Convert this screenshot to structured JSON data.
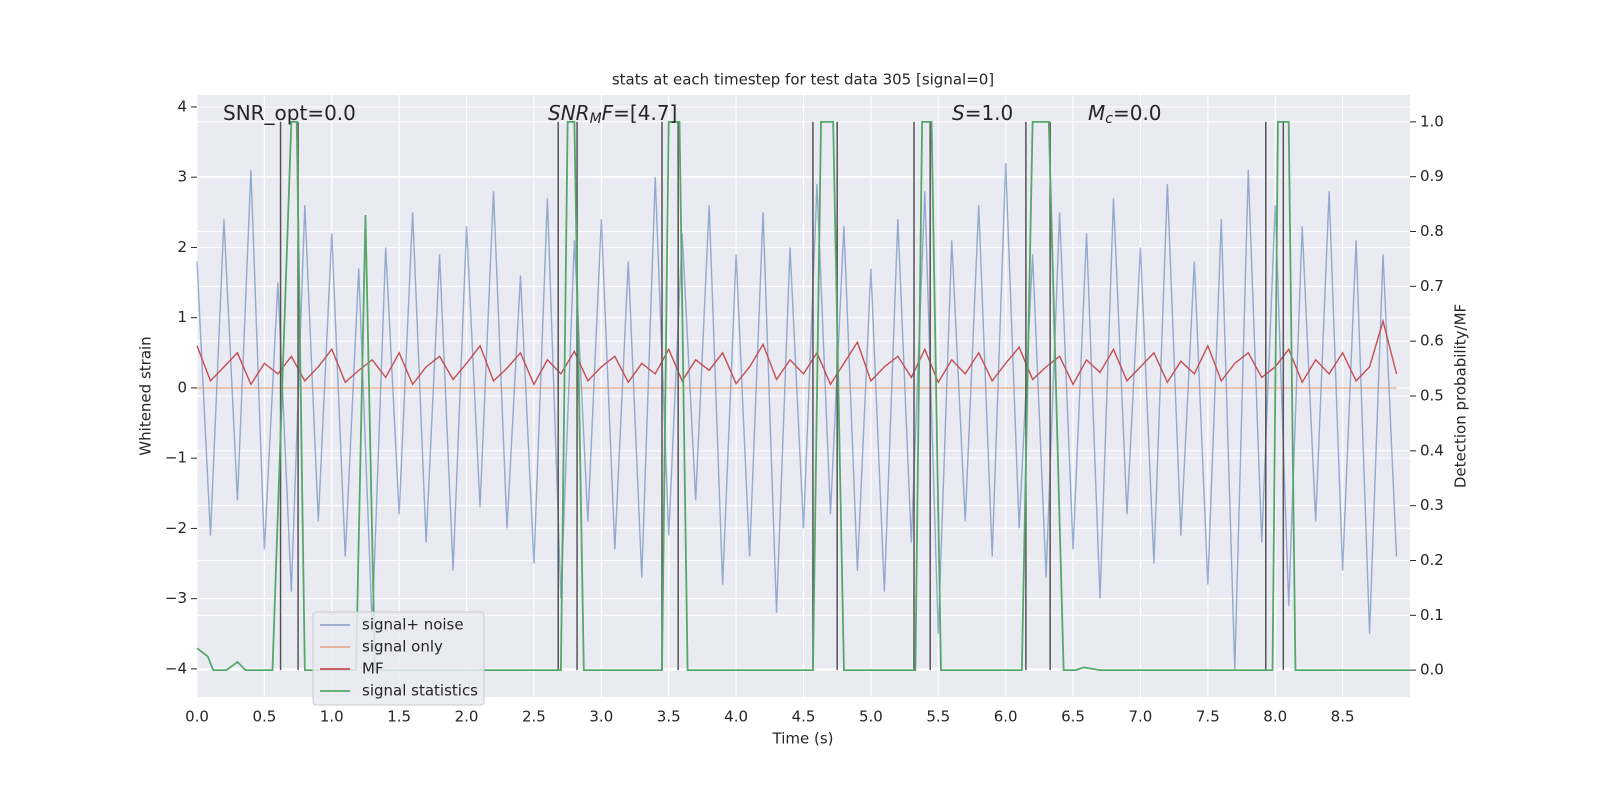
{
  "chart_data": {
    "type": "line",
    "title": "stats at each timestep for test data 305 [signal=0]",
    "xlabel": "Time (s)",
    "ylabel": "Whitened strain",
    "y2label": "Detection probability/MF",
    "x": [
      0.0,
      0.1,
      0.2,
      0.3,
      0.4,
      0.5,
      0.6,
      0.7,
      0.8,
      0.9,
      1.0,
      1.1,
      1.2,
      1.3,
      1.4,
      1.5,
      1.6,
      1.7,
      1.8,
      1.9,
      2.0,
      2.1,
      2.2,
      2.3,
      2.4,
      2.5,
      2.6,
      2.7,
      2.8,
      2.9,
      3.0,
      3.1,
      3.2,
      3.3,
      3.4,
      3.5,
      3.6,
      3.7,
      3.8,
      3.9,
      4.0,
      4.1,
      4.2,
      4.3,
      4.4,
      4.5,
      4.6,
      4.7,
      4.8,
      4.9,
      5.0,
      5.1,
      5.2,
      5.3,
      5.4,
      5.5,
      5.6,
      5.7,
      5.8,
      5.9,
      6.0,
      6.1,
      6.2,
      6.3,
      6.4,
      6.5,
      6.6,
      6.7,
      6.8,
      6.9,
      7.0,
      7.1,
      7.2,
      7.3,
      7.4,
      7.5,
      7.6,
      7.7,
      7.8,
      7.9,
      8.0,
      8.1,
      8.2,
      8.3,
      8.4,
      8.5,
      8.6,
      8.7,
      8.8,
      8.9
    ],
    "series": [
      {
        "name": "signal+ noise",
        "color": "#4c72b0",
        "opacity": 0.55,
        "values": [
          1.8,
          -2.1,
          2.4,
          -1.6,
          3.1,
          -2.3,
          1.5,
          -2.9,
          2.6,
          -1.9,
          2.2,
          -2.4,
          1.7,
          -3.4,
          2.0,
          -1.8,
          2.5,
          -2.2,
          1.9,
          -2.6,
          2.3,
          -1.7,
          2.8,
          -2.0,
          1.6,
          -2.5,
          2.7,
          -3.0,
          2.1,
          -1.9,
          2.4,
          -2.3,
          1.8,
          -2.7,
          3.0,
          -2.1,
          2.2,
          -1.6,
          2.6,
          -2.8,
          1.9,
          -2.4,
          2.5,
          -3.2,
          2.0,
          -2.0,
          2.9,
          -1.8,
          2.3,
          -2.6,
          1.7,
          -2.9,
          2.4,
          -2.2,
          2.8,
          -3.5,
          2.1,
          -1.9,
          2.6,
          -2.4,
          3.2,
          -2.0,
          1.9,
          -2.7,
          2.5,
          -2.3,
          2.2,
          -3.0,
          2.7,
          -1.8,
          2.0,
          -2.5,
          2.9,
          -2.1,
          1.8,
          -2.8,
          2.4,
          -4.0,
          3.1,
          -2.2,
          2.6,
          -3.1,
          2.3,
          -1.9,
          2.8,
          -2.6,
          2.1,
          -3.5,
          1.9,
          -2.4
        ]
      },
      {
        "name": "signal only",
        "color": "#dd8452",
        "opacity": 0.6,
        "values": [
          0,
          0,
          0,
          0,
          0,
          0,
          0,
          0,
          0,
          0,
          0,
          0,
          0,
          0,
          0,
          0,
          0,
          0,
          0,
          0,
          0,
          0,
          0,
          0,
          0,
          0,
          0,
          0,
          0,
          0,
          0,
          0,
          0,
          0,
          0,
          0,
          0,
          0,
          0,
          0,
          0,
          0,
          0,
          0,
          0,
          0,
          0,
          0,
          0,
          0,
          0,
          0,
          0,
          0,
          0,
          0,
          0,
          0,
          0,
          0,
          0,
          0,
          0,
          0,
          0,
          0,
          0,
          0,
          0,
          0,
          0,
          0,
          0,
          0,
          0,
          0,
          0,
          0,
          0,
          0,
          0,
          0,
          0,
          0,
          0,
          0,
          0,
          0,
          0,
          0
        ]
      },
      {
        "name": "MF",
        "color": "#c44e52",
        "opacity": 1,
        "values": [
          0.6,
          0.1,
          0.3,
          0.5,
          0.05,
          0.35,
          0.2,
          0.45,
          0.1,
          0.3,
          0.55,
          0.08,
          0.25,
          0.4,
          0.15,
          0.5,
          0.05,
          0.3,
          0.45,
          0.12,
          0.35,
          0.6,
          0.1,
          0.28,
          0.5,
          0.05,
          0.4,
          0.2,
          0.52,
          0.1,
          0.3,
          0.45,
          0.08,
          0.35,
          0.2,
          0.55,
          0.1,
          0.4,
          0.25,
          0.5,
          0.06,
          0.3,
          0.62,
          0.12,
          0.4,
          0.2,
          0.5,
          0.05,
          0.35,
          0.65,
          0.1,
          0.3,
          0.45,
          0.15,
          0.55,
          0.08,
          0.4,
          0.2,
          0.5,
          0.1,
          0.35,
          0.58,
          0.12,
          0.3,
          0.45,
          0.05,
          0.4,
          0.22,
          0.55,
          0.1,
          0.3,
          0.5,
          0.08,
          0.38,
          0.2,
          0.6,
          0.1,
          0.35,
          0.5,
          0.15,
          0.3,
          0.55,
          0.08,
          0.4,
          0.2,
          0.5,
          0.1,
          0.3,
          0.95,
          0.2
        ]
      },
      {
        "name": "signal statistics",
        "color": "#55a868",
        "opacity": 1,
        "axis": "y2",
        "x": [
          0.0,
          0.08,
          0.12,
          0.22,
          0.3,
          0.36,
          0.56,
          0.7,
          0.74,
          0.8,
          1.18,
          1.25,
          1.32,
          2.7,
          2.75,
          2.8,
          2.87,
          3.45,
          3.5,
          3.58,
          3.64,
          4.57,
          4.63,
          4.72,
          4.8,
          5.33,
          5.38,
          5.45,
          5.52,
          6.0,
          6.12,
          6.2,
          6.32,
          6.43,
          6.52,
          6.58,
          6.7,
          7.98,
          8.02,
          8.1,
          8.15,
          9.0
        ],
        "values": [
          0.04,
          0.025,
          0.0,
          0.0,
          0.015,
          0.0,
          0.0,
          1.0,
          1.0,
          0.0,
          0.0,
          0.83,
          0.0,
          0.0,
          1.0,
          1.0,
          0.0,
          0.0,
          1.0,
          1.0,
          0.0,
          0.0,
          1.0,
          1.0,
          0.0,
          0.0,
          1.0,
          1.0,
          0.0,
          0.0,
          0.0,
          1.0,
          1.0,
          0.0,
          0.0,
          0.005,
          0.0,
          0.0,
          1.0,
          1.0,
          0.0,
          0.0
        ]
      }
    ],
    "vlines": [
      0.62,
      0.75,
      2.68,
      2.82,
      3.45,
      3.57,
      4.57,
      4.75,
      5.32,
      5.44,
      6.15,
      6.33,
      7.93,
      8.06
    ],
    "vline_color": "#555555",
    "annotations": [
      [
        {
          "text": "SNR_opt=0.0"
        }
      ],
      [
        {
          "text": "SNR",
          "style": "italic"
        },
        {
          "text": "M",
          "style": "sub"
        },
        {
          "text": "F",
          "style": "italic"
        },
        {
          "text": "=[4.7]"
        }
      ],
      [
        {
          "text": "S",
          "style": "italic"
        },
        {
          "text": "=1.0"
        }
      ],
      [
        {
          "text": "M",
          "style": "italic"
        },
        {
          "text": "c",
          "style": "sub"
        },
        {
          "text": "=0.0"
        }
      ]
    ],
    "xlim": [
      0,
      9.0
    ],
    "ylim": [
      -4.4,
      4.17
    ],
    "y2lim": [
      -0.049,
      1.049
    ],
    "xticks": [
      {
        "value": 0,
        "label": "0.0"
      },
      0.5,
      {
        "value": 1,
        "label": "1.0"
      },
      1.5,
      {
        "value": 2,
        "label": "2.0"
      },
      2.5,
      {
        "value": 3,
        "label": "3.0"
      },
      3.5,
      {
        "value": 4,
        "label": "4.0"
      },
      4.5,
      {
        "value": 5,
        "label": "5.0"
      },
      5.5,
      {
        "value": 6,
        "label": "6.0"
      },
      6.5,
      {
        "value": 7,
        "label": "7.0"
      },
      7.5,
      {
        "value": 8,
        "label": "8.0"
      },
      8.5
    ],
    "yticks": [
      {
        "value": -4,
        "label": "−4"
      },
      {
        "value": -3,
        "label": "−3"
      },
      {
        "value": -2,
        "label": "−2"
      },
      {
        "value": -1,
        "label": "−1"
      },
      0,
      1,
      2,
      3,
      4
    ],
    "y2ticks": [
      {
        "value": 0,
        "label": "0.0"
      },
      0.1,
      0.2,
      0.3,
      0.4,
      0.5,
      0.6,
      0.7,
      0.8,
      0.9,
      {
        "value": 1,
        "label": "1.0"
      }
    ],
    "grid": true,
    "legend_loc": "lower left"
  }
}
